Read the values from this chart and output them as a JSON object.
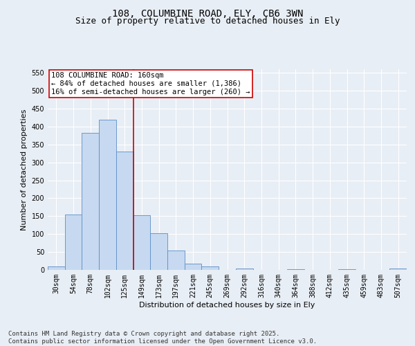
{
  "title_line1": "108, COLUMBINE ROAD, ELY, CB6 3WN",
  "title_line2": "Size of property relative to detached houses in Ely",
  "xlabel": "Distribution of detached houses by size in Ely",
  "ylabel": "Number of detached properties",
  "categories": [
    "30sqm",
    "54sqm",
    "78sqm",
    "102sqm",
    "125sqm",
    "149sqm",
    "173sqm",
    "197sqm",
    "221sqm",
    "245sqm",
    "269sqm",
    "292sqm",
    "316sqm",
    "340sqm",
    "364sqm",
    "388sqm",
    "412sqm",
    "435sqm",
    "459sqm",
    "483sqm",
    "507sqm"
  ],
  "values": [
    10,
    155,
    383,
    420,
    330,
    153,
    102,
    55,
    17,
    10,
    0,
    3,
    0,
    0,
    2,
    0,
    0,
    2,
    0,
    0,
    3
  ],
  "bar_color": "#c6d9f0",
  "bar_edge_color": "#5b8dc8",
  "vline_x_index": 5,
  "vline_color": "#cc0000",
  "annotation_text": "108 COLUMBINE ROAD: 160sqm\n← 84% of detached houses are smaller (1,386)\n16% of semi-detached houses are larger (260) →",
  "annotation_box_color": "#ffffff",
  "annotation_box_edge_color": "#cc0000",
  "ylim": [
    0,
    560
  ],
  "yticks": [
    0,
    50,
    100,
    150,
    200,
    250,
    300,
    350,
    400,
    450,
    500,
    550
  ],
  "background_color": "#e8eef5",
  "plot_background_color": "#e8eef5",
  "footnote": "Contains HM Land Registry data © Crown copyright and database right 2025.\nContains public sector information licensed under the Open Government Licence v3.0.",
  "title_fontsize": 10,
  "subtitle_fontsize": 9,
  "axis_label_fontsize": 8,
  "tick_fontsize": 7,
  "annotation_fontsize": 7.5,
  "footnote_fontsize": 6.5
}
